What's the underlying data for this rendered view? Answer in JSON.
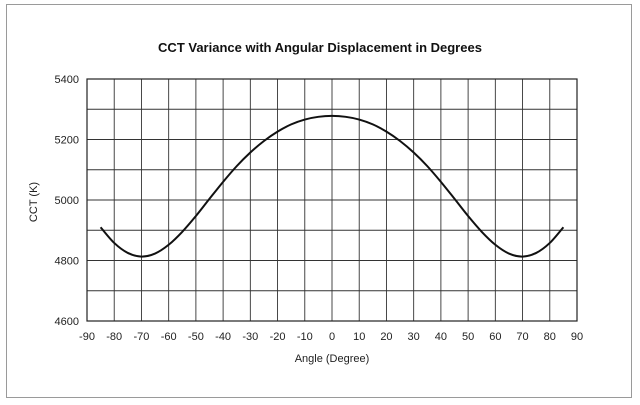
{
  "chart_data": {
    "type": "line",
    "title": "CCT Variance with Angular Displacement in Degrees",
    "xlabel": "Angle (Degree)",
    "ylabel": "CCT (K)",
    "xlim": [
      -90,
      90
    ],
    "ylim": [
      4600,
      5400
    ],
    "xticks": [
      -90,
      -80,
      -70,
      -60,
      -50,
      -40,
      -30,
      -20,
      -10,
      0,
      10,
      20,
      30,
      40,
      50,
      60,
      70,
      80,
      90
    ],
    "yticks": [
      4600,
      4800,
      5000,
      5200,
      5400
    ],
    "x_minor_step": 10,
    "y_minor_step": 100,
    "grid": true,
    "series": [
      {
        "x": [
          -85,
          -80,
          -75,
          -70,
          -65,
          -60,
          -55,
          -50,
          -45,
          -40,
          -35,
          -30,
          -25,
          -20,
          -15,
          -10,
          -5,
          0,
          5,
          10,
          15,
          20,
          25,
          30,
          35,
          40,
          45,
          50,
          55,
          60,
          65,
          70,
          75,
          80,
          85
        ],
        "y": [
          4910,
          4858,
          4825,
          4813,
          4823,
          4852,
          4895,
          4947,
          5004,
          5060,
          5112,
          5157,
          5195,
          5226,
          5250,
          5266,
          5275,
          5278,
          5275,
          5266,
          5250,
          5226,
          5195,
          5157,
          5112,
          5060,
          5004,
          4947,
          4895,
          4852,
          4823,
          4813,
          4825,
          4858,
          4910
        ]
      }
    ]
  }
}
